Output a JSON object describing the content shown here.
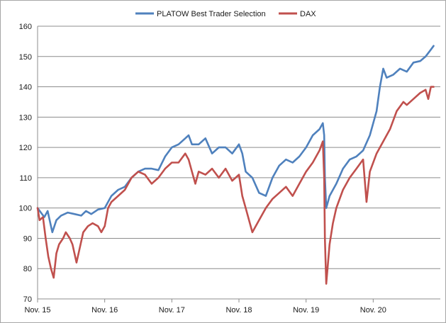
{
  "chart_data": {
    "type": "line",
    "title": "",
    "xlabel": "",
    "ylabel": "",
    "ylim": [
      70,
      160
    ],
    "yticks": [
      70,
      80,
      90,
      100,
      110,
      120,
      130,
      140,
      150,
      160
    ],
    "xlim": [
      0,
      6
    ],
    "xticks": [
      {
        "x": 0,
        "label": "Nov. 15"
      },
      {
        "x": 1,
        "label": "Nov. 16"
      },
      {
        "x": 2,
        "label": "Nov. 17"
      },
      {
        "x": 3,
        "label": "Nov. 18"
      },
      {
        "x": 4,
        "label": "Nov. 19"
      },
      {
        "x": 5,
        "label": "Nov. 20"
      }
    ],
    "grid": "horizontal",
    "legend_position": "top",
    "series": [
      {
        "name": "PLATOW Best Trader Selection",
        "color": "#4f81bd",
        "points": [
          [
            0,
            100
          ],
          [
            0.05,
            98.5
          ],
          [
            0.1,
            97
          ],
          [
            0.15,
            99
          ],
          [
            0.2,
            94
          ],
          [
            0.22,
            92
          ],
          [
            0.28,
            96
          ],
          [
            0.35,
            97.5
          ],
          [
            0.45,
            98.5
          ],
          [
            0.55,
            98
          ],
          [
            0.65,
            97.5
          ],
          [
            0.72,
            99
          ],
          [
            0.8,
            98
          ],
          [
            0.9,
            99.5
          ],
          [
            1.0,
            100
          ],
          [
            1.05,
            102
          ],
          [
            1.1,
            104
          ],
          [
            1.2,
            106
          ],
          [
            1.3,
            107
          ],
          [
            1.4,
            110
          ],
          [
            1.5,
            112
          ],
          [
            1.6,
            113
          ],
          [
            1.7,
            113
          ],
          [
            1.8,
            112.5
          ],
          [
            1.9,
            117
          ],
          [
            2.0,
            120
          ],
          [
            2.1,
            121
          ],
          [
            2.2,
            123
          ],
          [
            2.25,
            124
          ],
          [
            2.3,
            121
          ],
          [
            2.4,
            121
          ],
          [
            2.5,
            123
          ],
          [
            2.6,
            118
          ],
          [
            2.7,
            120
          ],
          [
            2.8,
            120
          ],
          [
            2.9,
            118
          ],
          [
            3.0,
            121
          ],
          [
            3.05,
            118
          ],
          [
            3.1,
            112
          ],
          [
            3.2,
            110
          ],
          [
            3.3,
            105
          ],
          [
            3.4,
            104
          ],
          [
            3.5,
            110
          ],
          [
            3.6,
            114
          ],
          [
            3.7,
            116
          ],
          [
            3.8,
            115
          ],
          [
            3.9,
            117
          ],
          [
            4.0,
            120
          ],
          [
            4.1,
            124
          ],
          [
            4.2,
            126
          ],
          [
            4.25,
            128
          ],
          [
            4.27,
            124
          ],
          [
            4.28,
            110
          ],
          [
            4.3,
            100
          ],
          [
            4.35,
            104
          ],
          [
            4.45,
            108
          ],
          [
            4.55,
            113
          ],
          [
            4.65,
            116
          ],
          [
            4.75,
            117
          ],
          [
            4.85,
            119
          ],
          [
            4.95,
            124
          ],
          [
            5.05,
            132
          ],
          [
            5.1,
            140
          ],
          [
            5.15,
            146
          ],
          [
            5.2,
            143
          ],
          [
            5.3,
            144
          ],
          [
            5.4,
            146
          ],
          [
            5.5,
            145
          ],
          [
            5.6,
            148
          ],
          [
            5.7,
            148.5
          ],
          [
            5.78,
            150
          ],
          [
            5.85,
            152
          ],
          [
            5.9,
            153.5
          ]
        ]
      },
      {
        "name": "DAX",
        "color": "#c0504d",
        "points": [
          [
            0,
            100
          ],
          [
            0.03,
            96
          ],
          [
            0.08,
            97
          ],
          [
            0.12,
            90
          ],
          [
            0.16,
            84
          ],
          [
            0.2,
            80
          ],
          [
            0.24,
            77
          ],
          [
            0.28,
            85
          ],
          [
            0.32,
            88
          ],
          [
            0.38,
            90
          ],
          [
            0.42,
            92
          ],
          [
            0.48,
            90
          ],
          [
            0.52,
            88
          ],
          [
            0.58,
            82
          ],
          [
            0.62,
            86
          ],
          [
            0.68,
            92
          ],
          [
            0.75,
            94
          ],
          [
            0.82,
            95
          ],
          [
            0.9,
            94
          ],
          [
            0.95,
            92
          ],
          [
            1.0,
            94
          ],
          [
            1.05,
            100
          ],
          [
            1.1,
            102
          ],
          [
            1.2,
            104
          ],
          [
            1.3,
            106
          ],
          [
            1.4,
            110
          ],
          [
            1.5,
            112
          ],
          [
            1.6,
            111
          ],
          [
            1.7,
            108
          ],
          [
            1.8,
            110
          ],
          [
            1.9,
            113
          ],
          [
            2.0,
            115
          ],
          [
            2.1,
            115
          ],
          [
            2.2,
            118
          ],
          [
            2.25,
            116
          ],
          [
            2.3,
            112
          ],
          [
            2.35,
            108
          ],
          [
            2.4,
            112
          ],
          [
            2.5,
            111
          ],
          [
            2.6,
            113
          ],
          [
            2.7,
            110
          ],
          [
            2.8,
            113
          ],
          [
            2.9,
            109
          ],
          [
            3.0,
            111
          ],
          [
            3.05,
            104
          ],
          [
            3.1,
            100
          ],
          [
            3.15,
            96
          ],
          [
            3.2,
            92
          ],
          [
            3.3,
            96
          ],
          [
            3.4,
            100
          ],
          [
            3.5,
            103
          ],
          [
            3.6,
            105
          ],
          [
            3.7,
            107
          ],
          [
            3.8,
            104
          ],
          [
            3.9,
            108
          ],
          [
            4.0,
            112
          ],
          [
            4.1,
            115
          ],
          [
            4.2,
            119
          ],
          [
            4.25,
            122
          ],
          [
            4.27,
            110
          ],
          [
            4.28,
            90
          ],
          [
            4.3,
            75
          ],
          [
            4.35,
            88
          ],
          [
            4.4,
            95
          ],
          [
            4.45,
            100
          ],
          [
            4.55,
            106
          ],
          [
            4.65,
            110
          ],
          [
            4.75,
            113
          ],
          [
            4.85,
            116
          ],
          [
            4.9,
            102
          ],
          [
            4.95,
            112
          ],
          [
            5.05,
            118
          ],
          [
            5.15,
            122
          ],
          [
            5.25,
            126
          ],
          [
            5.35,
            132
          ],
          [
            5.45,
            135
          ],
          [
            5.5,
            134
          ],
          [
            5.6,
            136
          ],
          [
            5.7,
            138
          ],
          [
            5.78,
            139
          ],
          [
            5.82,
            136
          ],
          [
            5.86,
            140
          ],
          [
            5.9,
            140
          ]
        ]
      }
    ]
  }
}
